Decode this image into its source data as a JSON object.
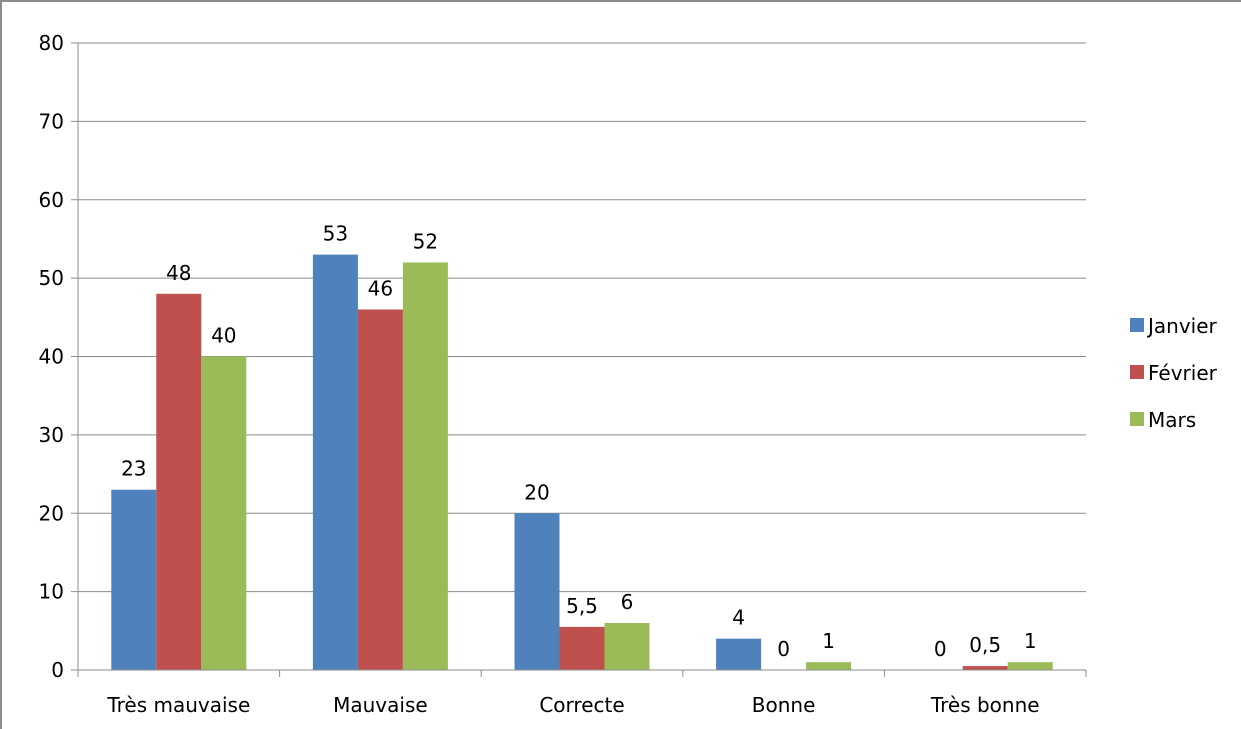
{
  "chart_data": {
    "type": "bar",
    "title": "",
    "xlabel": "",
    "ylabel": "",
    "categories": [
      "Très mauvaise",
      "Mauvaise",
      "Correcte",
      "Bonne",
      "Très bonne"
    ],
    "series": [
      {
        "name": "Janvier",
        "color": "#4f81bd",
        "values": [
          23,
          53,
          20,
          4,
          0
        ],
        "labels": [
          "23",
          "53",
          "20",
          "4",
          "0"
        ]
      },
      {
        "name": "Février",
        "color": "#c0504d",
        "values": [
          48,
          46,
          5.5,
          0,
          0.5
        ],
        "labels": [
          "48",
          "46",
          "5,5",
          "0",
          "0,5"
        ]
      },
      {
        "name": "Mars",
        "color": "#9bbb59",
        "values": [
          40,
          52,
          6,
          1,
          1
        ],
        "labels": [
          "40",
          "52",
          "6",
          "1",
          "1"
        ]
      }
    ],
    "ylim": [
      0,
      80
    ],
    "yticks": [
      0,
      10,
      20,
      30,
      40,
      50,
      60,
      70,
      80
    ],
    "grid": true,
    "legend_position": "right"
  }
}
